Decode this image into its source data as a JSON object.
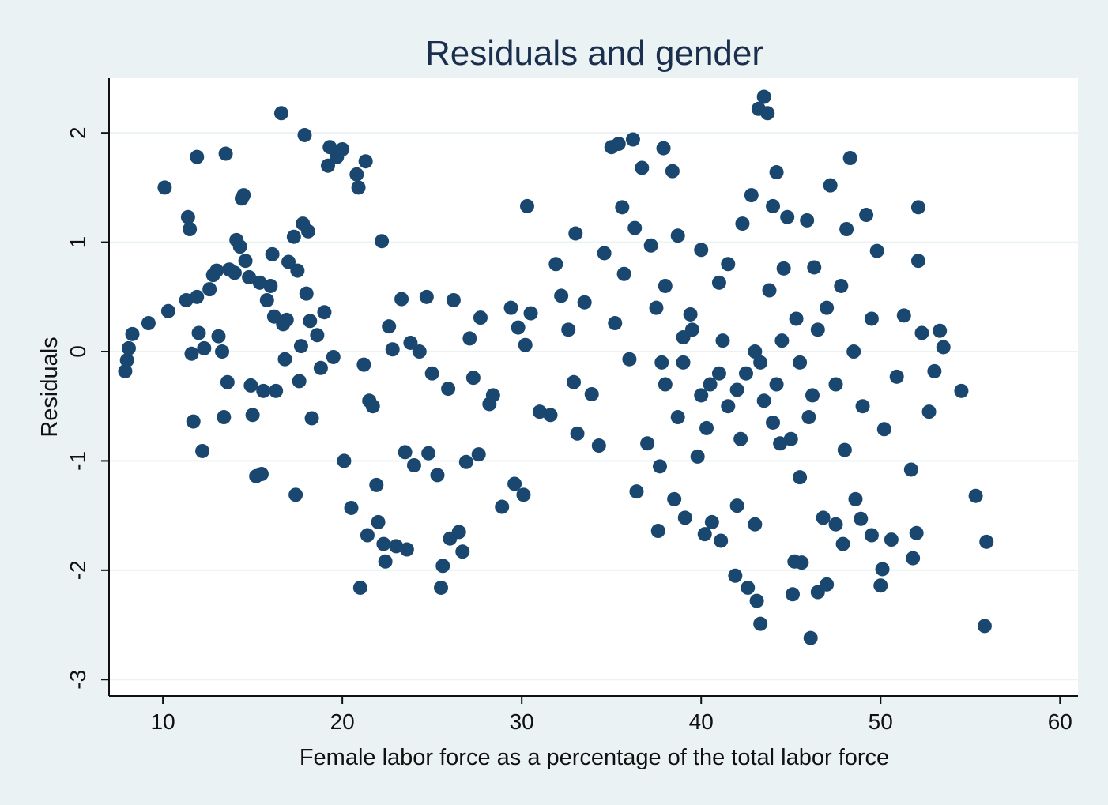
{
  "chart_data": {
    "type": "scatter",
    "title": "Residuals and gender",
    "xlabel": "Female labor force as a percentage of the total labor force",
    "ylabel": "Residuals",
    "xlim": [
      7,
      61
    ],
    "ylim": [
      -3.15,
      2.5
    ],
    "x_ticks": [
      10,
      20,
      30,
      40,
      50,
      60
    ],
    "x_tick_labels": [
      "10",
      "20",
      "30",
      "40",
      "50",
      "60"
    ],
    "y_ticks": [
      -3,
      -2,
      -1,
      0,
      1,
      2
    ],
    "y_tick_labels": [
      "-3",
      "-2",
      "-1",
      "0",
      "1",
      "2"
    ],
    "grid": true,
    "legend": "none",
    "colors": {
      "marker": "#1a476f",
      "background": "#eaf2f3",
      "plot_area": "#ffffff",
      "title": "#1a2e4d",
      "grid": "#eaf2f3"
    },
    "series": [
      {
        "points": [
          [
            7.9,
            -0.18
          ],
          [
            8.0,
            -0.08
          ],
          [
            8.1,
            0.03
          ],
          [
            8.3,
            0.16
          ],
          [
            9.2,
            0.26
          ],
          [
            10.1,
            1.5
          ],
          [
            10.3,
            0.37
          ],
          [
            11.3,
            0.47
          ],
          [
            11.4,
            1.23
          ],
          [
            11.5,
            1.12
          ],
          [
            11.6,
            -0.02
          ],
          [
            11.7,
            -0.64
          ],
          [
            11.9,
            0.5
          ],
          [
            11.9,
            1.78
          ],
          [
            12.0,
            0.17
          ],
          [
            12.2,
            -0.91
          ],
          [
            12.3,
            0.03
          ],
          [
            12.6,
            0.57
          ],
          [
            12.8,
            0.7
          ],
          [
            13.0,
            0.74
          ],
          [
            13.1,
            0.14
          ],
          [
            13.3,
            0.0
          ],
          [
            13.4,
            -0.6
          ],
          [
            13.5,
            1.81
          ],
          [
            13.6,
            -0.28
          ],
          [
            13.7,
            0.75
          ],
          [
            14.0,
            0.72
          ],
          [
            14.1,
            1.02
          ],
          [
            14.3,
            0.96
          ],
          [
            14.4,
            1.4
          ],
          [
            14.5,
            1.43
          ],
          [
            14.6,
            0.83
          ],
          [
            14.8,
            0.68
          ],
          [
            14.9,
            -0.31
          ],
          [
            15.0,
            -0.58
          ],
          [
            15.2,
            -1.14
          ],
          [
            15.4,
            0.63
          ],
          [
            15.5,
            -1.12
          ],
          [
            15.6,
            -0.36
          ],
          [
            15.8,
            0.47
          ],
          [
            16.0,
            0.6
          ],
          [
            16.1,
            0.89
          ],
          [
            16.2,
            0.32
          ],
          [
            16.3,
            -0.36
          ],
          [
            16.6,
            2.18
          ],
          [
            16.7,
            0.25
          ],
          [
            16.8,
            -0.07
          ],
          [
            16.9,
            0.29
          ],
          [
            17.0,
            0.82
          ],
          [
            17.3,
            1.05
          ],
          [
            17.4,
            -1.31
          ],
          [
            17.5,
            0.74
          ],
          [
            17.6,
            -0.27
          ],
          [
            17.7,
            0.05
          ],
          [
            17.8,
            1.17
          ],
          [
            17.9,
            1.98
          ],
          [
            18.0,
            0.53
          ],
          [
            18.1,
            1.1
          ],
          [
            18.2,
            0.28
          ],
          [
            18.3,
            -0.61
          ],
          [
            18.6,
            0.15
          ],
          [
            18.8,
            -0.15
          ],
          [
            19.0,
            0.36
          ],
          [
            19.2,
            1.7
          ],
          [
            19.3,
            1.87
          ],
          [
            19.5,
            -0.05
          ],
          [
            19.7,
            1.78
          ],
          [
            20.0,
            1.85
          ],
          [
            20.1,
            -1.0
          ],
          [
            20.5,
            -1.43
          ],
          [
            20.8,
            1.62
          ],
          [
            20.9,
            1.5
          ],
          [
            21.0,
            -2.16
          ],
          [
            21.2,
            -0.12
          ],
          [
            21.3,
            1.74
          ],
          [
            21.4,
            -1.68
          ],
          [
            21.5,
            -0.45
          ],
          [
            21.7,
            -0.5
          ],
          [
            21.9,
            -1.22
          ],
          [
            22.0,
            -1.56
          ],
          [
            22.2,
            1.01
          ],
          [
            22.3,
            -1.76
          ],
          [
            22.4,
            -1.92
          ],
          [
            22.6,
            0.23
          ],
          [
            22.8,
            0.02
          ],
          [
            23.0,
            -1.78
          ],
          [
            23.3,
            0.48
          ],
          [
            23.5,
            -0.92
          ],
          [
            23.6,
            -1.81
          ],
          [
            23.8,
            0.08
          ],
          [
            24.0,
            -1.04
          ],
          [
            24.3,
            0.0
          ],
          [
            24.7,
            0.5
          ],
          [
            24.8,
            -0.93
          ],
          [
            25.0,
            -0.2
          ],
          [
            25.3,
            -1.13
          ],
          [
            25.5,
            -2.16
          ],
          [
            25.6,
            -1.96
          ],
          [
            25.9,
            -0.34
          ],
          [
            26.0,
            -1.71
          ],
          [
            26.2,
            0.47
          ],
          [
            26.5,
            -1.65
          ],
          [
            26.7,
            -1.83
          ],
          [
            26.9,
            -1.01
          ],
          [
            27.1,
            0.12
          ],
          [
            27.3,
            -0.24
          ],
          [
            27.6,
            -0.94
          ],
          [
            27.7,
            0.31
          ],
          [
            28.2,
            -0.48
          ],
          [
            28.4,
            -0.4
          ],
          [
            28.9,
            -1.42
          ],
          [
            29.4,
            0.4
          ],
          [
            29.6,
            -1.21
          ],
          [
            29.8,
            0.22
          ],
          [
            30.1,
            -1.31
          ],
          [
            30.2,
            0.06
          ],
          [
            30.3,
            1.33
          ],
          [
            30.5,
            0.35
          ],
          [
            31.0,
            -0.55
          ],
          [
            31.6,
            -0.58
          ],
          [
            31.9,
            0.8
          ],
          [
            32.2,
            0.51
          ],
          [
            32.6,
            0.2
          ],
          [
            32.9,
            -0.28
          ],
          [
            33.0,
            1.08
          ],
          [
            33.1,
            -0.75
          ],
          [
            33.5,
            0.45
          ],
          [
            33.9,
            -0.39
          ],
          [
            34.3,
            -0.86
          ],
          [
            34.6,
            0.9
          ],
          [
            35.0,
            1.87
          ],
          [
            35.2,
            0.26
          ],
          [
            35.4,
            1.9
          ],
          [
            35.6,
            1.32
          ],
          [
            35.7,
            0.71
          ],
          [
            36.0,
            -0.07
          ],
          [
            36.2,
            1.94
          ],
          [
            36.3,
            1.13
          ],
          [
            36.4,
            -1.28
          ],
          [
            36.7,
            1.68
          ],
          [
            37.0,
            -0.84
          ],
          [
            37.2,
            0.97
          ],
          [
            37.5,
            0.4
          ],
          [
            37.6,
            -1.64
          ],
          [
            37.7,
            -1.05
          ],
          [
            37.9,
            1.86
          ],
          [
            38.0,
            0.6
          ],
          [
            38.4,
            1.65
          ],
          [
            38.5,
            -1.35
          ],
          [
            38.7,
            1.06
          ],
          [
            39.0,
            0.13
          ],
          [
            39.1,
            -1.52
          ],
          [
            39.4,
            0.34
          ],
          [
            39.8,
            -0.96
          ],
          [
            40.0,
            0.93
          ],
          [
            40.2,
            -1.67
          ],
          [
            40.6,
            -1.56
          ],
          [
            41.0,
            0.63
          ],
          [
            41.1,
            -1.73
          ],
          [
            41.5,
            0.8
          ],
          [
            41.9,
            -2.05
          ],
          [
            42.0,
            -1.41
          ],
          [
            42.3,
            1.17
          ],
          [
            42.6,
            -2.16
          ],
          [
            42.8,
            1.43
          ],
          [
            43.0,
            -1.58
          ],
          [
            43.1,
            -2.28
          ],
          [
            43.2,
            2.22
          ],
          [
            43.3,
            -2.49
          ],
          [
            43.5,
            2.33
          ],
          [
            43.7,
            2.18
          ],
          [
            43.8,
            0.56
          ],
          [
            44.0,
            1.33
          ],
          [
            44.2,
            1.64
          ],
          [
            44.4,
            -0.84
          ],
          [
            44.6,
            0.76
          ],
          [
            44.8,
            1.23
          ],
          [
            45.1,
            -2.22
          ],
          [
            45.2,
            -1.92
          ],
          [
            45.5,
            -1.15
          ],
          [
            45.6,
            -1.93
          ],
          [
            45.9,
            1.2
          ],
          [
            46.1,
            -2.62
          ],
          [
            46.3,
            0.77
          ],
          [
            46.5,
            -2.2
          ],
          [
            46.8,
            -1.52
          ],
          [
            47.0,
            -2.13
          ],
          [
            47.2,
            1.52
          ],
          [
            47.5,
            -1.58
          ],
          [
            47.9,
            -1.76
          ],
          [
            48.1,
            1.12
          ],
          [
            48.3,
            1.77
          ],
          [
            48.6,
            -1.35
          ],
          [
            48.9,
            -1.53
          ],
          [
            49.2,
            1.25
          ],
          [
            49.5,
            -1.68
          ],
          [
            49.8,
            0.92
          ],
          [
            50.0,
            -2.14
          ],
          [
            50.1,
            -1.99
          ],
          [
            50.2,
            -0.71
          ],
          [
            50.6,
            -1.72
          ],
          [
            50.9,
            -0.23
          ],
          [
            51.3,
            0.33
          ],
          [
            51.7,
            -1.08
          ],
          [
            51.8,
            -1.89
          ],
          [
            52.0,
            -1.66
          ],
          [
            52.1,
            0.83
          ],
          [
            52.1,
            1.32
          ],
          [
            52.3,
            0.17
          ],
          [
            52.7,
            -0.55
          ],
          [
            53.0,
            -0.18
          ],
          [
            53.3,
            0.19
          ],
          [
            53.5,
            0.04
          ],
          [
            54.5,
            -0.36
          ],
          [
            55.3,
            -1.32
          ],
          [
            55.8,
            -2.51
          ],
          [
            55.9,
            -1.74
          ],
          [
            40.5,
            -0.3
          ],
          [
            41.5,
            -0.5
          ],
          [
            42.5,
            -0.2
          ],
          [
            43.5,
            -0.45
          ],
          [
            44.5,
            0.1
          ],
          [
            45.5,
            -0.1
          ],
          [
            46.5,
            0.2
          ],
          [
            47.5,
            -0.3
          ],
          [
            48.5,
            0.0
          ],
          [
            49.5,
            0.3
          ],
          [
            46.0,
            -0.6
          ],
          [
            47.0,
            0.4
          ],
          [
            45.0,
            -0.8
          ],
          [
            44.0,
            -0.65
          ],
          [
            43.0,
            0.0
          ],
          [
            42.0,
            -0.35
          ],
          [
            41.0,
            -0.2
          ],
          [
            40.0,
            -0.4
          ],
          [
            39.0,
            -0.1
          ],
          [
            38.0,
            -0.3
          ],
          [
            48.0,
            -0.9
          ],
          [
            49.0,
            -0.5
          ],
          [
            47.8,
            0.6
          ],
          [
            46.2,
            -0.4
          ],
          [
            45.3,
            0.3
          ],
          [
            44.2,
            -0.3
          ],
          [
            43.3,
            -0.1
          ],
          [
            42.2,
            -0.8
          ],
          [
            41.2,
            0.1
          ],
          [
            40.3,
            -0.7
          ],
          [
            39.5,
            0.2
          ],
          [
            38.7,
            -0.6
          ],
          [
            37.8,
            -0.1
          ]
        ]
      }
    ]
  }
}
